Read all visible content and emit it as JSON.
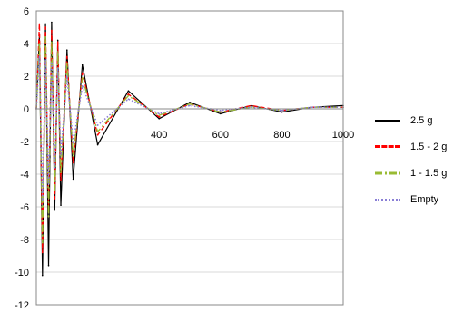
{
  "chart_data": {
    "type": "line",
    "title": "",
    "xlabel": "",
    "ylabel": "",
    "xlim": [
      0,
      1000
    ],
    "ylim": [
      -12,
      6
    ],
    "x_ticks": [
      400,
      600,
      800,
      1000
    ],
    "x_tick_labels": [
      "400",
      "600",
      "800",
      "1000"
    ],
    "y_ticks": [
      -12,
      -10,
      -8,
      -6,
      -4,
      -2,
      0,
      2,
      4,
      6
    ],
    "y_tick_labels": [
      "-12",
      "-10",
      "-8",
      "-6",
      "-4",
      "-2",
      "0",
      "2",
      "4",
      "6"
    ],
    "grid": "horizontal",
    "legend_position": "right",
    "series": [
      {
        "name": "2.5 g",
        "color": "#000000",
        "style": "solid",
        "x": [
          0,
          10,
          20,
          30,
          40,
          50,
          60,
          70,
          80,
          100,
          120,
          150,
          200,
          300,
          400,
          500,
          600,
          700,
          800,
          900,
          1000
        ],
        "y": [
          0,
          4.5,
          -10.2,
          5.2,
          -9.6,
          5.3,
          -6.2,
          4.2,
          -5.9,
          3.6,
          -4.3,
          2.7,
          -2.2,
          1.1,
          -0.6,
          0.4,
          -0.3,
          0.2,
          -0.2,
          0.1,
          0.2
        ]
      },
      {
        "name": "1.5 - 2 g",
        "color": "#ff0000",
        "style": "dashed",
        "x": [
          0,
          10,
          20,
          30,
          40,
          50,
          60,
          70,
          80,
          100,
          120,
          150,
          200,
          300,
          400,
          500,
          600,
          700,
          800,
          900,
          1000
        ],
        "y": [
          0,
          5.2,
          -8.8,
          5.0,
          -6.2,
          4.8,
          -5.5,
          4.1,
          -4.4,
          3.2,
          -3.3,
          2.2,
          -1.6,
          0.9,
          -0.5,
          0.3,
          -0.2,
          0.2,
          -0.1,
          0.1,
          0.1
        ]
      },
      {
        "name": "1 - 1.5 g",
        "color": "#99bb33",
        "style": "dashdot",
        "x": [
          0,
          10,
          20,
          30,
          40,
          50,
          60,
          70,
          80,
          100,
          120,
          150,
          200,
          300,
          400,
          500,
          600,
          700,
          800,
          900,
          1000
        ],
        "y": [
          0,
          4.0,
          -8.2,
          4.4,
          -6.6,
          4.1,
          -5.0,
          3.5,
          -3.9,
          2.8,
          -2.9,
          1.9,
          -1.4,
          0.8,
          -0.4,
          0.3,
          -0.2,
          0.1,
          -0.1,
          0.1,
          0.1
        ]
      },
      {
        "name": "Empty",
        "color": "#8a7fd6",
        "style": "dotted",
        "x": [
          0,
          10,
          20,
          30,
          40,
          50,
          60,
          70,
          80,
          100,
          120,
          150,
          200,
          300,
          400,
          500,
          600,
          700,
          800,
          900,
          1000
        ],
        "y": [
          0,
          3.2,
          -5.6,
          3.0,
          -4.6,
          2.8,
          -3.6,
          2.5,
          -2.8,
          2.0,
          -2.1,
          1.4,
          -1.0,
          0.6,
          -0.3,
          0.2,
          -0.1,
          0.1,
          -0.1,
          0.1,
          0.1
        ]
      }
    ]
  }
}
